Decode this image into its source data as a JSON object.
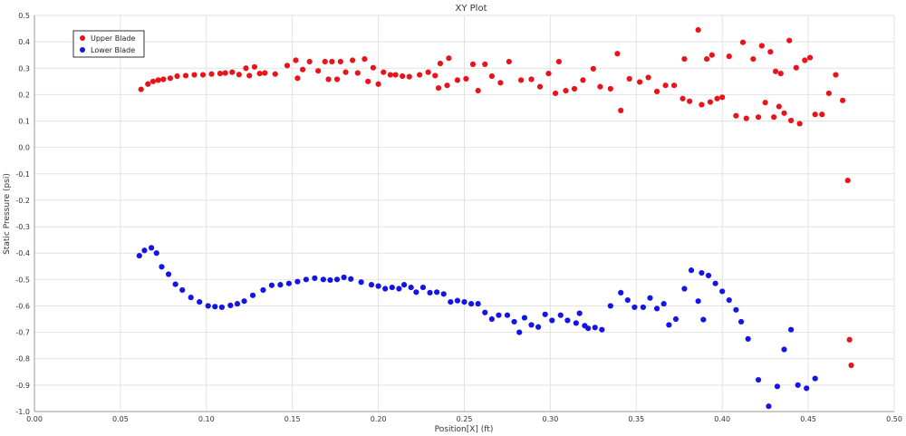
{
  "chart_data": {
    "type": "scatter",
    "title": "XY Plot",
    "xlabel": "Position[X] (ft)",
    "ylabel": "Static Pressure (psi)",
    "xlim": [
      0.0,
      0.5
    ],
    "ylim": [
      -1.0,
      0.5
    ],
    "xticks": [
      "0.00",
      "0.05",
      "0.10",
      "0.15",
      "0.20",
      "0.25",
      "0.30",
      "0.35",
      "0.40",
      "0.45",
      "0.50"
    ],
    "yticks": [
      "0.5",
      "0.4",
      "0.3",
      "0.2",
      "0.1",
      "0.0",
      "-0.1",
      "-0.2",
      "-0.3",
      "-0.4",
      "-0.5",
      "-0.6",
      "-0.7",
      "-0.8",
      "-0.9",
      "-1.0"
    ],
    "grid": true,
    "legend_position": "top-left",
    "series": [
      {
        "name": "Upper Blade",
        "color": "#e8141b",
        "points": [
          [
            0.062,
            0.22
          ],
          [
            0.066,
            0.24
          ],
          [
            0.069,
            0.25
          ],
          [
            0.072,
            0.255
          ],
          [
            0.075,
            0.258
          ],
          [
            0.079,
            0.262
          ],
          [
            0.083,
            0.27
          ],
          [
            0.088,
            0.272
          ],
          [
            0.093,
            0.275
          ],
          [
            0.098,
            0.275
          ],
          [
            0.103,
            0.278
          ],
          [
            0.108,
            0.28
          ],
          [
            0.111,
            0.282
          ],
          [
            0.115,
            0.285
          ],
          [
            0.119,
            0.276
          ],
          [
            0.123,
            0.3
          ],
          [
            0.125,
            0.272
          ],
          [
            0.128,
            0.305
          ],
          [
            0.131,
            0.28
          ],
          [
            0.134,
            0.282
          ],
          [
            0.14,
            0.278
          ],
          [
            0.147,
            0.31
          ],
          [
            0.152,
            0.33
          ],
          [
            0.153,
            0.262
          ],
          [
            0.156,
            0.295
          ],
          [
            0.16,
            0.325
          ],
          [
            0.165,
            0.29
          ],
          [
            0.169,
            0.325
          ],
          [
            0.171,
            0.258
          ],
          [
            0.173,
            0.325
          ],
          [
            0.176,
            0.258
          ],
          [
            0.178,
            0.325
          ],
          [
            0.181,
            0.285
          ],
          [
            0.185,
            0.33
          ],
          [
            0.188,
            0.282
          ],
          [
            0.192,
            0.335
          ],
          [
            0.194,
            0.25
          ],
          [
            0.197,
            0.302
          ],
          [
            0.2,
            0.24
          ],
          [
            0.203,
            0.285
          ],
          [
            0.207,
            0.275
          ],
          [
            0.21,
            0.275
          ],
          [
            0.214,
            0.27
          ],
          [
            0.218,
            0.268
          ],
          [
            0.224,
            0.275
          ],
          [
            0.229,
            0.285
          ],
          [
            0.233,
            0.272
          ],
          [
            0.235,
            0.225
          ],
          [
            0.236,
            0.318
          ],
          [
            0.24,
            0.235
          ],
          [
            0.241,
            0.338
          ],
          [
            0.246,
            0.255
          ],
          [
            0.251,
            0.26
          ],
          [
            0.255,
            0.315
          ],
          [
            0.258,
            0.215
          ],
          [
            0.262,
            0.315
          ],
          [
            0.266,
            0.27
          ],
          [
            0.271,
            0.245
          ],
          [
            0.276,
            0.325
          ],
          [
            0.283,
            0.255
          ],
          [
            0.289,
            0.258
          ],
          [
            0.294,
            0.23
          ],
          [
            0.299,
            0.28
          ],
          [
            0.303,
            0.205
          ],
          [
            0.305,
            0.325
          ],
          [
            0.309,
            0.215
          ],
          [
            0.314,
            0.222
          ],
          [
            0.319,
            0.255
          ],
          [
            0.325,
            0.298
          ],
          [
            0.329,
            0.23
          ],
          [
            0.335,
            0.222
          ],
          [
            0.339,
            0.355
          ],
          [
            0.341,
            0.14
          ],
          [
            0.346,
            0.26
          ],
          [
            0.352,
            0.248
          ],
          [
            0.357,
            0.265
          ],
          [
            0.362,
            0.212
          ],
          [
            0.367,
            0.235
          ],
          [
            0.372,
            0.235
          ],
          [
            0.377,
            0.185
          ],
          [
            0.378,
            0.335
          ],
          [
            0.381,
            0.175
          ],
          [
            0.386,
            0.445
          ],
          [
            0.388,
            0.162
          ],
          [
            0.391,
            0.335
          ],
          [
            0.393,
            0.172
          ],
          [
            0.394,
            0.35
          ],
          [
            0.397,
            0.185
          ],
          [
            0.4,
            0.19
          ],
          [
            0.404,
            0.345
          ],
          [
            0.408,
            0.12
          ],
          [
            0.412,
            0.398
          ],
          [
            0.414,
            0.11
          ],
          [
            0.418,
            0.335
          ],
          [
            0.421,
            0.115
          ],
          [
            0.423,
            0.385
          ],
          [
            0.425,
            0.17
          ],
          [
            0.428,
            0.362
          ],
          [
            0.43,
            0.115
          ],
          [
            0.431,
            0.288
          ],
          [
            0.433,
            0.155
          ],
          [
            0.434,
            0.28
          ],
          [
            0.436,
            0.13
          ],
          [
            0.439,
            0.405
          ],
          [
            0.44,
            0.102
          ],
          [
            0.443,
            0.302
          ],
          [
            0.445,
            0.09
          ],
          [
            0.448,
            0.33
          ],
          [
            0.451,
            0.34
          ],
          [
            0.454,
            0.125
          ],
          [
            0.458,
            0.125
          ],
          [
            0.462,
            0.205
          ],
          [
            0.466,
            0.275
          ],
          [
            0.47,
            0.178
          ],
          [
            0.473,
            -0.125
          ],
          [
            0.474,
            -0.728
          ],
          [
            0.475,
            -0.825
          ]
        ]
      },
      {
        "name": "Lower Blade",
        "color": "#1414e6",
        "points": [
          [
            0.061,
            -0.41
          ],
          [
            0.064,
            -0.39
          ],
          [
            0.068,
            -0.38
          ],
          [
            0.071,
            -0.4
          ],
          [
            0.074,
            -0.452
          ],
          [
            0.078,
            -0.48
          ],
          [
            0.082,
            -0.518
          ],
          [
            0.086,
            -0.54
          ],
          [
            0.091,
            -0.568
          ],
          [
            0.096,
            -0.585
          ],
          [
            0.101,
            -0.6
          ],
          [
            0.105,
            -0.603
          ],
          [
            0.109,
            -0.605
          ],
          [
            0.114,
            -0.598
          ],
          [
            0.118,
            -0.592
          ],
          [
            0.122,
            -0.582
          ],
          [
            0.127,
            -0.56
          ],
          [
            0.133,
            -0.54
          ],
          [
            0.138,
            -0.522
          ],
          [
            0.143,
            -0.52
          ],
          [
            0.148,
            -0.515
          ],
          [
            0.153,
            -0.508
          ],
          [
            0.158,
            -0.5
          ],
          [
            0.163,
            -0.495
          ],
          [
            0.168,
            -0.5
          ],
          [
            0.172,
            -0.502
          ],
          [
            0.176,
            -0.5
          ],
          [
            0.18,
            -0.492
          ],
          [
            0.184,
            -0.498
          ],
          [
            0.19,
            -0.51
          ],
          [
            0.196,
            -0.52
          ],
          [
            0.2,
            -0.525
          ],
          [
            0.204,
            -0.535
          ],
          [
            0.208,
            -0.53
          ],
          [
            0.212,
            -0.535
          ],
          [
            0.215,
            -0.52
          ],
          [
            0.219,
            -0.53
          ],
          [
            0.222,
            -0.548
          ],
          [
            0.226,
            -0.53
          ],
          [
            0.23,
            -0.55
          ],
          [
            0.234,
            -0.548
          ],
          [
            0.238,
            -0.555
          ],
          [
            0.242,
            -0.585
          ],
          [
            0.246,
            -0.58
          ],
          [
            0.25,
            -0.585
          ],
          [
            0.254,
            -0.592
          ],
          [
            0.258,
            -0.592
          ],
          [
            0.262,
            -0.625
          ],
          [
            0.266,
            -0.65
          ],
          [
            0.27,
            -0.635
          ],
          [
            0.275,
            -0.635
          ],
          [
            0.279,
            -0.66
          ],
          [
            0.282,
            -0.7
          ],
          [
            0.285,
            -0.645
          ],
          [
            0.289,
            -0.672
          ],
          [
            0.293,
            -0.68
          ],
          [
            0.297,
            -0.632
          ],
          [
            0.301,
            -0.655
          ],
          [
            0.306,
            -0.635
          ],
          [
            0.31,
            -0.655
          ],
          [
            0.315,
            -0.665
          ],
          [
            0.317,
            -0.628
          ],
          [
            0.32,
            -0.675
          ],
          [
            0.322,
            -0.685
          ],
          [
            0.326,
            -0.682
          ],
          [
            0.33,
            -0.69
          ],
          [
            0.335,
            -0.6
          ],
          [
            0.341,
            -0.55
          ],
          [
            0.345,
            -0.578
          ],
          [
            0.349,
            -0.605
          ],
          [
            0.354,
            -0.605
          ],
          [
            0.358,
            -0.57
          ],
          [
            0.362,
            -0.61
          ],
          [
            0.366,
            -0.592
          ],
          [
            0.369,
            -0.672
          ],
          [
            0.373,
            -0.65
          ],
          [
            0.378,
            -0.535
          ],
          [
            0.382,
            -0.465
          ],
          [
            0.386,
            -0.582
          ],
          [
            0.388,
            -0.475
          ],
          [
            0.389,
            -0.652
          ],
          [
            0.392,
            -0.485
          ],
          [
            0.396,
            -0.515
          ],
          [
            0.4,
            -0.545
          ],
          [
            0.404,
            -0.578
          ],
          [
            0.408,
            -0.615
          ],
          [
            0.411,
            -0.66
          ],
          [
            0.415,
            -0.725
          ],
          [
            0.421,
            -0.88
          ],
          [
            0.427,
            -0.98
          ],
          [
            0.432,
            -0.905
          ],
          [
            0.436,
            -0.765
          ],
          [
            0.44,
            -0.69
          ],
          [
            0.444,
            -0.9
          ],
          [
            0.449,
            -0.912
          ],
          [
            0.454,
            -0.875
          ]
        ]
      }
    ]
  }
}
